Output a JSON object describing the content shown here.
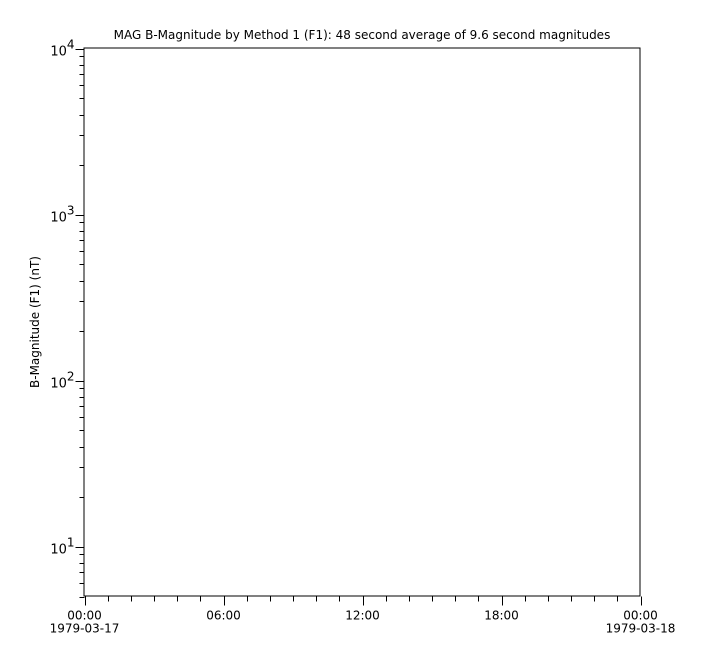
{
  "chart_data": {
    "type": "line",
    "title": "MAG  B-Magnitude by Method 1 (F1): 48 second average of 9.6 second magnitudes",
    "xlabel": "",
    "ylabel": "B-Magnitude (F1) (nT)",
    "yscale": "log",
    "ylim": [
      5,
      10000
    ],
    "xlim": [
      "1979-03-17T00:00",
      "1979-03-18T00:00"
    ],
    "y_ticks": [
      {
        "value": 10,
        "base": "10",
        "exp": "1"
      },
      {
        "value": 100,
        "base": "10",
        "exp": "2"
      },
      {
        "value": 1000,
        "base": "10",
        "exp": "3"
      },
      {
        "value": 10000,
        "base": "10",
        "exp": "4"
      }
    ],
    "x_ticks": [
      {
        "hours": 0,
        "label": "00:00",
        "date": "1979-03-17"
      },
      {
        "hours": 6,
        "label": "06:00",
        "date": ""
      },
      {
        "hours": 12,
        "label": "12:00",
        "date": ""
      },
      {
        "hours": 18,
        "label": "18:00",
        "date": ""
      },
      {
        "hours": 24,
        "label": "00:00",
        "date": "1979-03-18"
      }
    ],
    "x_minor_step_hours": 1,
    "grid": false,
    "series": []
  }
}
